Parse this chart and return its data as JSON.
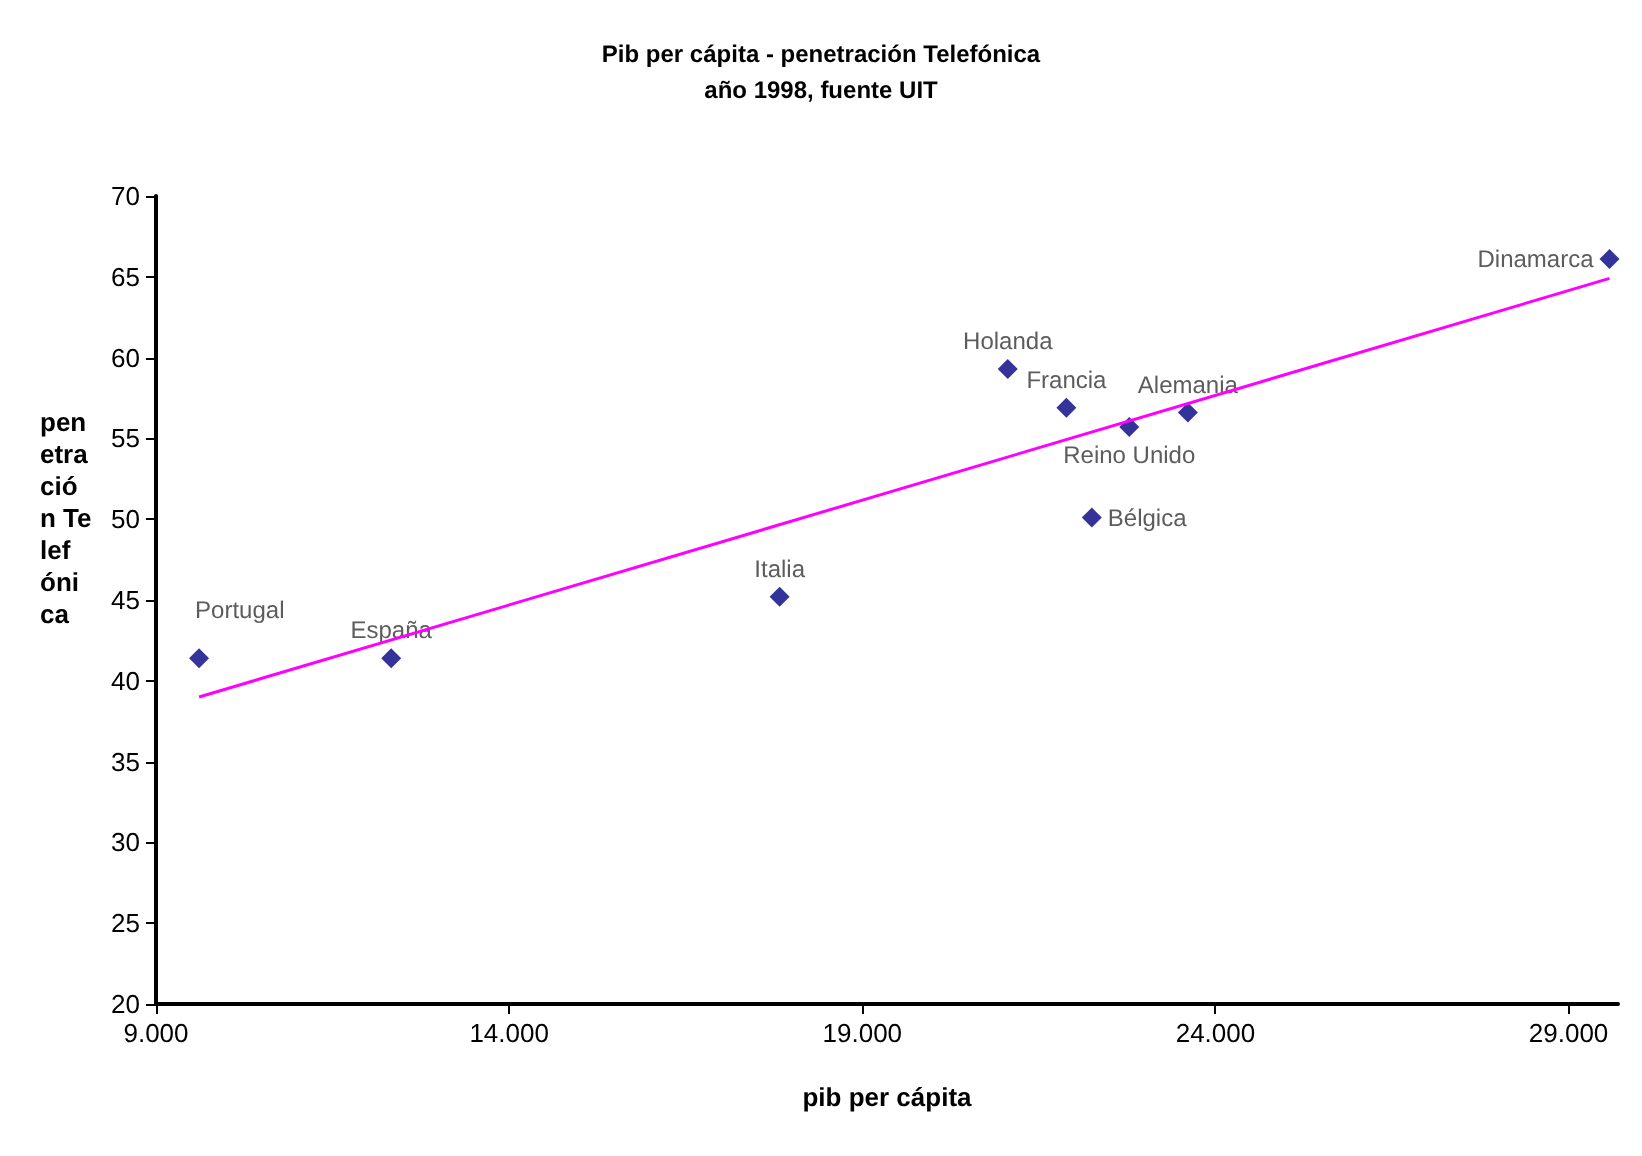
{
  "chart_data": {
    "type": "scatter",
    "title": "Pib per cápita - penetración Telefónica",
    "subtitle": "año 1998, fuente UIT",
    "xlabel": "pib per cápita",
    "ylabel": "penetración Telefónica",
    "xlim": [
      9000,
      29700
    ],
    "xticks": [
      {
        "value": 9000,
        "label": "9.000"
      },
      {
        "value": 14000,
        "label": "14.000"
      },
      {
        "value": 19000,
        "label": "19.000"
      },
      {
        "value": 24000,
        "label": "24.000"
      },
      {
        "value": 29000,
        "label": "29.000"
      }
    ],
    "ylim": [
      20,
      70
    ],
    "yticks": [
      20,
      25,
      30,
      35,
      40,
      45,
      50,
      55,
      60,
      65,
      70
    ],
    "grid": false,
    "series": [
      {
        "marker": "diamond",
        "color": "#000080",
        "x": [
          9610,
          12330,
          17830,
          21060,
          21890,
          22780,
          22250,
          23610,
          29580
        ],
        "values": [
          41.4,
          41.4,
          45.2,
          59.3,
          56.9,
          55.7,
          50.1,
          56.6,
          66.1
        ]
      },
      {
        "type": "line",
        "marker": "none",
        "color": "#ff00ff",
        "x": [
          9610,
          29580
        ],
        "values": [
          39.0,
          64.9
        ]
      }
    ],
    "annotations": [
      {
        "text": "Portugal",
        "x": 9610,
        "y": 41.4
      },
      {
        "text": "España",
        "x": 12330,
        "y": 41.4
      },
      {
        "text": "Italia",
        "x": 17830,
        "y": 45.2
      },
      {
        "text": "Holanda",
        "x": 21060,
        "y": 59.3
      },
      {
        "text": "Francia",
        "x": 21890,
        "y": 56.9
      },
      {
        "text": "Reino Unido",
        "x": 22780,
        "y": 55.7
      },
      {
        "text": "Bélgica",
        "x": 22250,
        "y": 50.1
      },
      {
        "text": "Alemania",
        "x": 23610,
        "y": 56.6
      },
      {
        "text": "Dinamarca",
        "x": 29580,
        "y": 66.1
      }
    ]
  }
}
